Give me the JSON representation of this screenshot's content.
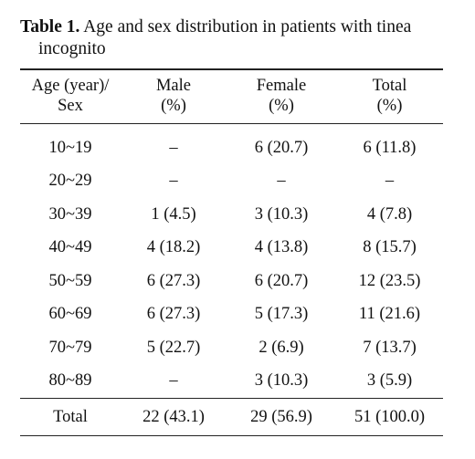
{
  "caption": {
    "label": "Table 1.",
    "text": "Age and sex distribution in patients with tinea incognito"
  },
  "table": {
    "header": [
      [
        "Age (year)/",
        "Sex"
      ],
      [
        "Male",
        "(%)"
      ],
      [
        "Female",
        "(%)"
      ],
      [
        "Total",
        "(%)"
      ]
    ],
    "rows": [
      [
        "10~19",
        "–",
        "6 (20.7)",
        "6 (11.8)"
      ],
      [
        "20~29",
        "–",
        "–",
        "–"
      ],
      [
        "30~39",
        "1 (4.5)",
        "3 (10.3)",
        "4 (7.8)"
      ],
      [
        "40~49",
        "4 (18.2)",
        "4 (13.8)",
        "8 (15.7)"
      ],
      [
        "50~59",
        "6 (27.3)",
        "6 (20.7)",
        "12 (23.5)"
      ],
      [
        "60~69",
        "6 (27.3)",
        "5 (17.3)",
        "11 (21.6)"
      ],
      [
        "70~79",
        "5 (22.7)",
        "2 (6.9)",
        "7 (13.7)"
      ],
      [
        "80~89",
        "–",
        "3 (10.3)",
        "3 (5.9)"
      ]
    ],
    "total": [
      "Total",
      "22 (43.1)",
      "29 (56.9)",
      "51 (100.0)"
    ]
  }
}
